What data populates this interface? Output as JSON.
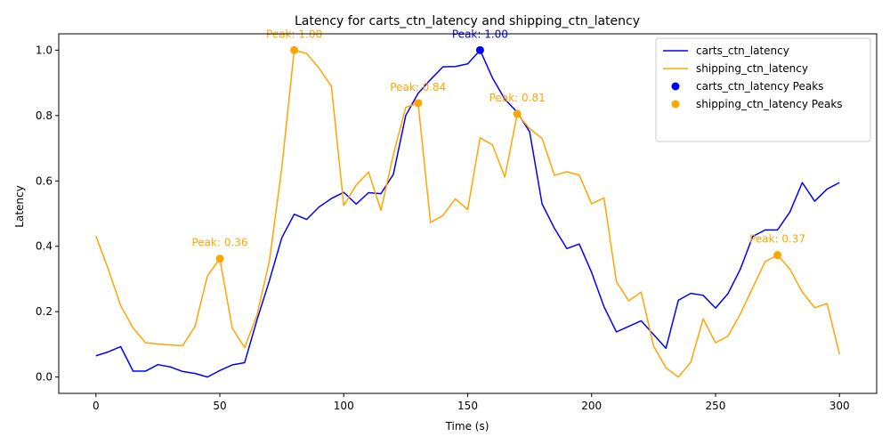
{
  "chart_data": {
    "type": "line",
    "title": "Latency for carts_ctn_latency and shipping_ctn_latency",
    "xlabel": "Time (s)",
    "ylabel": "Latency",
    "xlim": [
      -15,
      315
    ],
    "ylim": [
      -0.05,
      1.05
    ],
    "xticks": [
      0,
      50,
      100,
      150,
      200,
      250,
      300
    ],
    "yticks": [
      0.0,
      0.2,
      0.4,
      0.6,
      0.8,
      1.0
    ],
    "xtick_labels": [
      "0",
      "50",
      "100",
      "150",
      "200",
      "250",
      "300"
    ],
    "ytick_labels": [
      "0.0",
      "0.2",
      "0.4",
      "0.6",
      "0.8",
      "1.0"
    ],
    "grid": false,
    "legend_position": "upper right",
    "x": [
      0,
      5,
      10,
      15,
      20,
      25,
      30,
      35,
      40,
      45,
      50,
      55,
      60,
      65,
      70,
      75,
      80,
      85,
      90,
      95,
      100,
      105,
      110,
      115,
      120,
      125,
      130,
      135,
      140,
      145,
      150,
      155,
      160,
      165,
      170,
      175,
      180,
      185,
      190,
      195,
      200,
      205,
      210,
      215,
      220,
      225,
      230,
      235,
      240,
      245,
      250,
      255,
      260,
      265,
      270,
      275,
      280,
      285,
      290,
      295,
      300
    ],
    "series": [
      {
        "name": "carts_ctn_latency",
        "color": "#0000ff",
        "values": [
          0.065,
          0.077,
          0.093,
          0.018,
          0.018,
          0.038,
          0.031,
          0.017,
          0.011,
          0.0,
          0.02,
          0.037,
          0.044,
          0.175,
          0.295,
          0.426,
          0.498,
          0.482,
          0.52,
          0.546,
          0.565,
          0.529,
          0.564,
          0.561,
          0.62,
          0.8,
          0.868,
          0.91,
          0.949,
          0.95,
          0.958,
          1.0,
          0.915,
          0.85,
          0.81,
          0.75,
          0.53,
          0.455,
          0.393,
          0.407,
          0.32,
          0.215,
          0.138,
          0.155,
          0.172,
          0.13,
          0.088,
          0.235,
          0.256,
          0.25,
          0.211,
          0.255,
          0.33,
          0.43,
          0.45,
          0.45,
          0.505,
          0.595,
          0.538,
          0.575,
          0.595
        ]
      },
      {
        "name": "shipping_ctn_latency",
        "color": "#ffa500",
        "values": [
          0.431,
          0.33,
          0.218,
          0.15,
          0.105,
          0.101,
          0.098,
          0.096,
          0.155,
          0.31,
          0.362,
          0.15,
          0.09,
          0.19,
          0.355,
          0.64,
          1.0,
          0.99,
          0.945,
          0.89,
          0.525,
          0.587,
          0.627,
          0.51,
          0.68,
          0.825,
          0.838,
          0.473,
          0.494,
          0.545,
          0.512,
          0.732,
          0.71,
          0.612,
          0.805,
          0.76,
          0.73,
          0.617,
          0.628,
          0.618,
          0.53,
          0.548,
          0.292,
          0.233,
          0.26,
          0.095,
          0.028,
          0.0,
          0.045,
          0.178,
          0.105,
          0.125,
          0.193,
          0.273,
          0.353,
          0.373,
          0.33,
          0.26,
          0.212,
          0.225,
          0.07
        ]
      }
    ],
    "peak_series": [
      {
        "name": "carts_ctn_latency Peaks",
        "color": "#0000ff",
        "points": [
          {
            "x": 155,
            "y": 1.0,
            "label": "Peak: 1.00"
          }
        ]
      },
      {
        "name": "shipping_ctn_latency Peaks",
        "color": "#ffa500",
        "points": [
          {
            "x": 50,
            "y": 0.362,
            "label": "Peak: 0.36"
          },
          {
            "x": 80,
            "y": 1.0,
            "label": "Peak: 1.00"
          },
          {
            "x": 130,
            "y": 0.838,
            "label": "Peak: 0.84"
          },
          {
            "x": 170,
            "y": 0.805,
            "label": "Peak: 0.81"
          },
          {
            "x": 275,
            "y": 0.373,
            "label": "Peak: 0.37"
          }
        ]
      }
    ]
  }
}
